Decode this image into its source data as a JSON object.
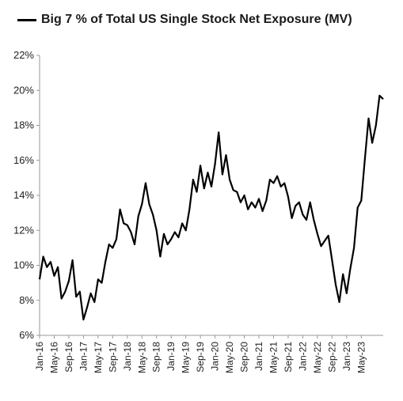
{
  "chart_data": {
    "type": "line",
    "legend": {
      "label": "Big 7 % of Total US Single Stock Net Exposure (MV)",
      "position": "top-left"
    },
    "series": [
      {
        "name": "Big 7 % of Total US Single Stock Net Exposure (MV)",
        "color": "#000000",
        "points": [
          [
            "2016-01",
            9.2
          ],
          [
            "2016-02",
            10.5
          ],
          [
            "2016-03",
            9.9
          ],
          [
            "2016-04",
            10.2
          ],
          [
            "2016-05",
            9.4
          ],
          [
            "2016-06",
            9.9
          ],
          [
            "2016-07",
            8.1
          ],
          [
            "2016-08",
            8.5
          ],
          [
            "2016-09",
            9.1
          ],
          [
            "2016-10",
            10.3
          ],
          [
            "2016-11",
            8.2
          ],
          [
            "2016-12",
            8.5
          ],
          [
            "2017-01",
            6.9
          ],
          [
            "2017-02",
            7.6
          ],
          [
            "2017-03",
            8.4
          ],
          [
            "2017-04",
            7.9
          ],
          [
            "2017-05",
            9.2
          ],
          [
            "2017-06",
            9.0
          ],
          [
            "2017-07",
            10.2
          ],
          [
            "2017-08",
            11.2
          ],
          [
            "2017-09",
            11.0
          ],
          [
            "2017-10",
            11.5
          ],
          [
            "2017-11",
            13.2
          ],
          [
            "2017-12",
            12.4
          ],
          [
            "2018-01",
            12.3
          ],
          [
            "2018-02",
            11.9
          ],
          [
            "2018-03",
            11.2
          ],
          [
            "2018-04",
            12.8
          ],
          [
            "2018-05",
            13.5
          ],
          [
            "2018-06",
            14.7
          ],
          [
            "2018-07",
            13.5
          ],
          [
            "2018-08",
            12.9
          ],
          [
            "2018-09",
            12.0
          ],
          [
            "2018-10",
            10.5
          ],
          [
            "2018-11",
            11.8
          ],
          [
            "2018-12",
            11.2
          ],
          [
            "2019-01",
            11.5
          ],
          [
            "2019-02",
            11.9
          ],
          [
            "2019-03",
            11.6
          ],
          [
            "2019-04",
            12.4
          ],
          [
            "2019-05",
            12.0
          ],
          [
            "2019-06",
            13.2
          ],
          [
            "2019-07",
            14.9
          ],
          [
            "2019-08",
            14.2
          ],
          [
            "2019-09",
            15.7
          ],
          [
            "2019-10",
            14.4
          ],
          [
            "2019-11",
            15.3
          ],
          [
            "2019-12",
            14.5
          ],
          [
            "2020-01",
            15.8
          ],
          [
            "2020-02",
            17.6
          ],
          [
            "2020-03",
            15.2
          ],
          [
            "2020-04",
            16.3
          ],
          [
            "2020-05",
            14.9
          ],
          [
            "2020-06",
            14.3
          ],
          [
            "2020-07",
            14.2
          ],
          [
            "2020-08",
            13.6
          ],
          [
            "2020-09",
            14.0
          ],
          [
            "2020-10",
            13.2
          ],
          [
            "2020-11",
            13.6
          ],
          [
            "2020-12",
            13.3
          ],
          [
            "2021-01",
            13.8
          ],
          [
            "2021-02",
            13.1
          ],
          [
            "2021-03",
            13.7
          ],
          [
            "2021-04",
            14.9
          ],
          [
            "2021-05",
            14.7
          ],
          [
            "2021-06",
            15.1
          ],
          [
            "2021-07",
            14.5
          ],
          [
            "2021-08",
            14.7
          ],
          [
            "2021-09",
            13.9
          ],
          [
            "2021-10",
            12.7
          ],
          [
            "2021-11",
            13.4
          ],
          [
            "2021-12",
            13.6
          ],
          [
            "2022-01",
            12.9
          ],
          [
            "2022-02",
            12.6
          ],
          [
            "2022-03",
            13.6
          ],
          [
            "2022-04",
            12.6
          ],
          [
            "2022-05",
            11.8
          ],
          [
            "2022-06",
            11.1
          ],
          [
            "2022-07",
            11.4
          ],
          [
            "2022-08",
            11.7
          ],
          [
            "2022-09",
            10.3
          ],
          [
            "2022-10",
            8.9
          ],
          [
            "2022-11",
            7.9
          ],
          [
            "2022-12",
            9.5
          ],
          [
            "2023-01",
            8.4
          ],
          [
            "2023-02",
            9.8
          ],
          [
            "2023-03",
            11.0
          ],
          [
            "2023-04",
            13.3
          ],
          [
            "2023-05",
            13.7
          ],
          [
            "2023-06",
            16.1
          ],
          [
            "2023-07",
            18.4
          ],
          [
            "2023-08",
            17.0
          ],
          [
            "2023-09",
            18.0
          ],
          [
            "2023-10",
            19.7
          ],
          [
            "2023-11",
            19.5
          ]
        ]
      }
    ],
    "y_axis": {
      "min": 6,
      "max": 22,
      "ticks": [
        6,
        8,
        10,
        12,
        14,
        16,
        18,
        20,
        22
      ],
      "tick_labels": [
        "6%",
        "8%",
        "10%",
        "12%",
        "14%",
        "16%",
        "18%",
        "20%",
        "22%"
      ]
    },
    "x_axis": {
      "start": "2016-01",
      "end": "2023-11",
      "ticks": [
        "2016-01",
        "2016-05",
        "2016-09",
        "2017-01",
        "2017-05",
        "2017-09",
        "2018-01",
        "2018-05",
        "2018-09",
        "2019-01",
        "2019-05",
        "2019-09",
        "2020-01",
        "2020-05",
        "2020-09",
        "2021-01",
        "2021-05",
        "2021-09",
        "2022-01",
        "2022-05",
        "2022-09",
        "2023-01",
        "2023-05"
      ],
      "tick_labels": [
        "Jan-16",
        "May-16",
        "Sep-16",
        "Jan-17",
        "May-17",
        "Sep-17",
        "Jan-18",
        "May-18",
        "Sep-18",
        "Jan-19",
        "May-19",
        "Sep-19",
        "Jan-20",
        "May-20",
        "Sep-20",
        "Jan-21",
        "May-21",
        "Sep-21",
        "Jan-22",
        "May-22",
        "Sep-22",
        "Jan-23",
        "May-23"
      ],
      "label_rotation": "vertical"
    },
    "grid": false
  }
}
